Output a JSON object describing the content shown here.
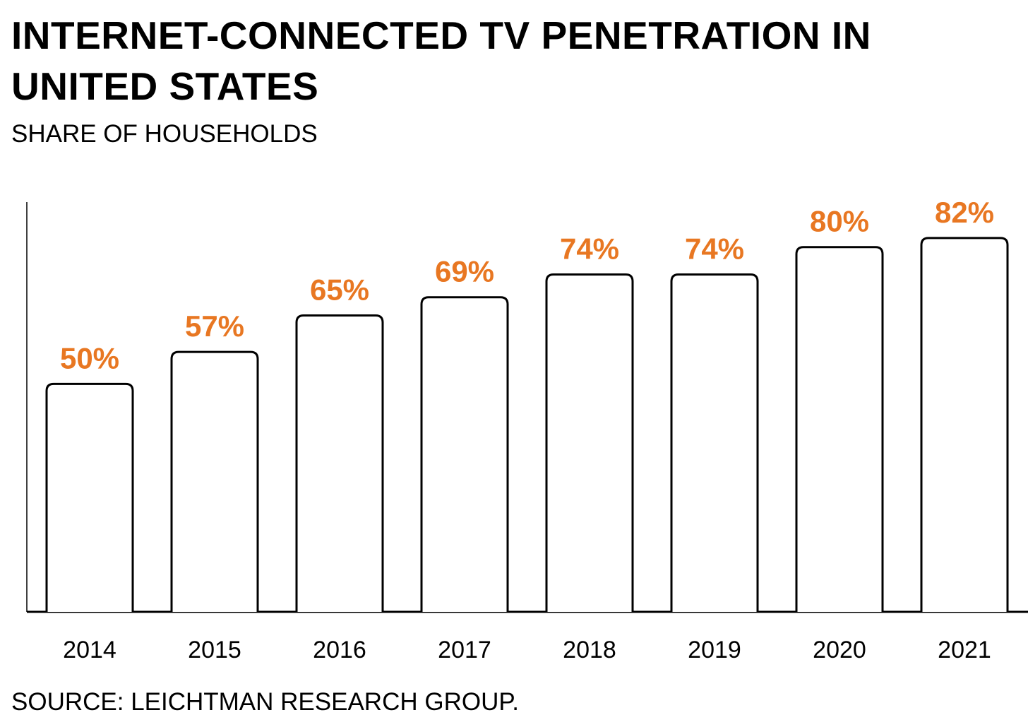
{
  "chart_data": {
    "type": "bar",
    "title": "INTERNET-CONNECTED TV PENETRATION IN UNITED STATES",
    "subtitle": "SHARE OF HOUSEHOLDS",
    "source": "SOURCE: LEICHTMAN RESEARCH GROUP.",
    "categories": [
      "2014",
      "2015",
      "2016",
      "2017",
      "2018",
      "2019",
      "2020",
      "2021"
    ],
    "values": [
      50,
      57,
      65,
      69,
      74,
      74,
      80,
      82
    ],
    "value_labels": [
      "50%",
      "57%",
      "65%",
      "69%",
      "74%",
      "74%",
      "80%",
      "82%"
    ],
    "xlabel": "",
    "ylabel": "",
    "ylim": [
      0,
      90
    ],
    "grid": false,
    "colors": {
      "label": "#e87722",
      "bar_fill": "#ffffff",
      "bar_stroke": "#000000",
      "axis": "#000000"
    }
  }
}
